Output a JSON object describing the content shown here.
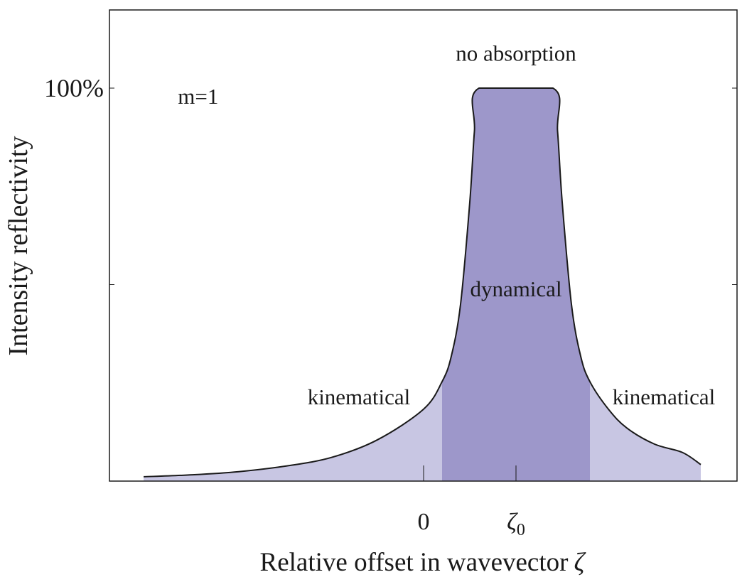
{
  "chart_data": {
    "type": "area",
    "title": "",
    "xlabel": "Relative offset in wavevector",
    "xlabel_symbol": "ζ",
    "ylabel": "Intensity reflectivity",
    "x_ticks": [
      {
        "label": "0",
        "sub": "",
        "value": 0
      },
      {
        "label": "ζ",
        "sub": "0",
        "value": 1
      }
    ],
    "y_ticks": [
      {
        "label": "100%",
        "value": 100
      },
      {
        "label": "",
        "value": 50
      }
    ],
    "xlim": [
      -3.03,
      3.0
    ],
    "ylim": [
      0,
      100
    ],
    "grid": false,
    "series": [
      {
        "name": "",
        "region": "kinematical-left",
        "color": "#c8c6e3",
        "x": [
          -3.03,
          -2.5,
          -2.0,
          -1.5,
          -1.0,
          -0.5,
          0.0,
          0.2
        ],
        "y": [
          1.1,
          1.6,
          2.4,
          3.8,
          6.0,
          10.5,
          18.3,
          25.3
        ]
      },
      {
        "name": "",
        "region": "dynamical",
        "color": "#9d97ca",
        "x": [
          0.2,
          0.3,
          0.4,
          0.5,
          0.55,
          0.6,
          1.4,
          1.45,
          1.5,
          1.6,
          1.7,
          1.8
        ],
        "y": [
          25.3,
          31.8,
          45.0,
          71.0,
          89.0,
          100,
          100,
          89.0,
          71.0,
          45.0,
          31.8,
          25.3
        ]
      },
      {
        "name": "",
        "region": "kinematical-right",
        "color": "#c8c6e3",
        "x": [
          1.8,
          2.0,
          2.2,
          2.5,
          2.8,
          3.0
        ],
        "y": [
          25.3,
          18.3,
          13.5,
          9.4,
          7.3,
          4.2
        ]
      }
    ],
    "annotations": [
      {
        "text": "no absorption",
        "x": 1.0,
        "y": 107
      },
      {
        "text": "m=1",
        "x": -2.44,
        "y": 96
      },
      {
        "text": "dynamical",
        "x": 1.0,
        "y": 47
      },
      {
        "text": "kinematical",
        "x": -0.7,
        "y": 19.5
      },
      {
        "text": "kinematical",
        "x": 2.6,
        "y": 19.5
      }
    ]
  }
}
